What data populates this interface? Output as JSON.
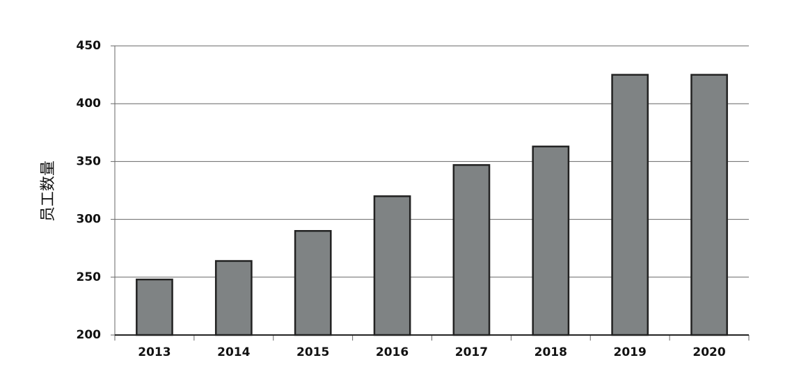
{
  "chart_data": {
    "type": "bar",
    "y_label": "员工数量",
    "categories": [
      "2013",
      "2014",
      "2015",
      "2016",
      "2017",
      "2018",
      "2019",
      "2020"
    ],
    "values": [
      248,
      264,
      290,
      320,
      347,
      363,
      425,
      425
    ],
    "color": "#7f8384",
    "ylim": [
      200,
      450
    ],
    "yticks": [
      200,
      250,
      300,
      350,
      400,
      450
    ],
    "grid": true
  }
}
